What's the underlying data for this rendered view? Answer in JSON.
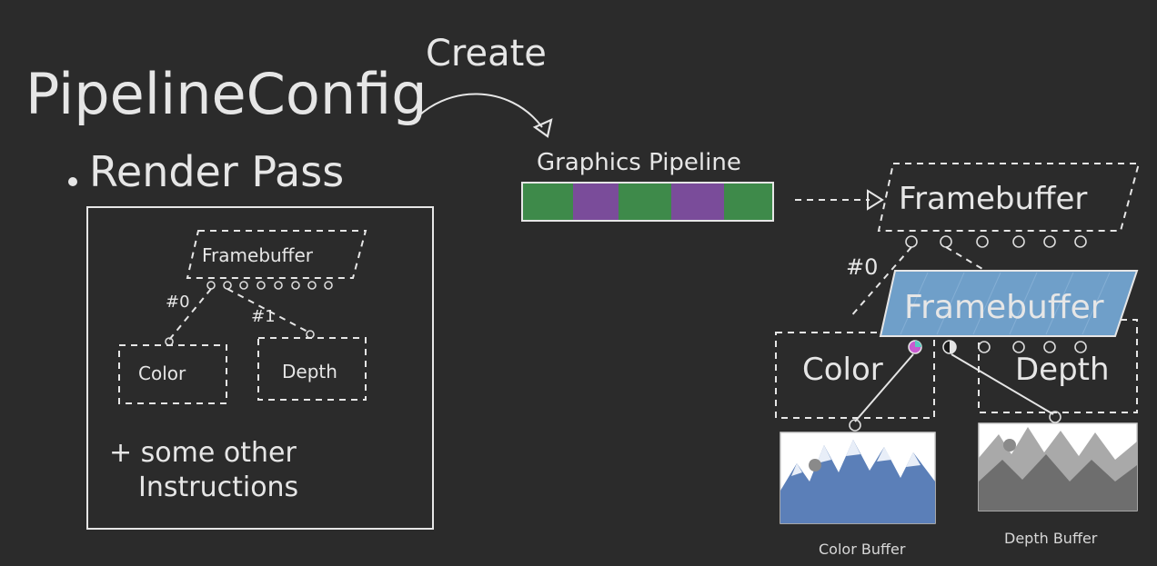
{
  "title": {
    "line1": "PipelineConfig",
    "line2": "Render Pass"
  },
  "arrow_label": "Create",
  "pipeline": {
    "label": "Graphics Pipeline",
    "segment_colors": [
      "#3e8a4a",
      "#7a4c9a",
      "#3e8a4a",
      "#7a4c9a",
      "#3e8a4a"
    ]
  },
  "render_pass_box": {
    "framebuffer_label": "Framebuffer",
    "attachment0": "#0",
    "attachment1": "#1",
    "color_label": "Color",
    "depth_label": "Depth",
    "note_line1": "+ some other",
    "note_line2": "Instructions"
  },
  "right_diagram": {
    "framebuffer_outline_label": "Framebuffer",
    "attachment0": "#0",
    "framebuffer_filled_label": "Framebuffer",
    "framebuffer_fill_color": "#6f9fc9",
    "color_label": "Color",
    "depth_label": "Depth",
    "color_buffer_label": "Color Buffer",
    "depth_buffer_label": "Depth Buffer"
  }
}
